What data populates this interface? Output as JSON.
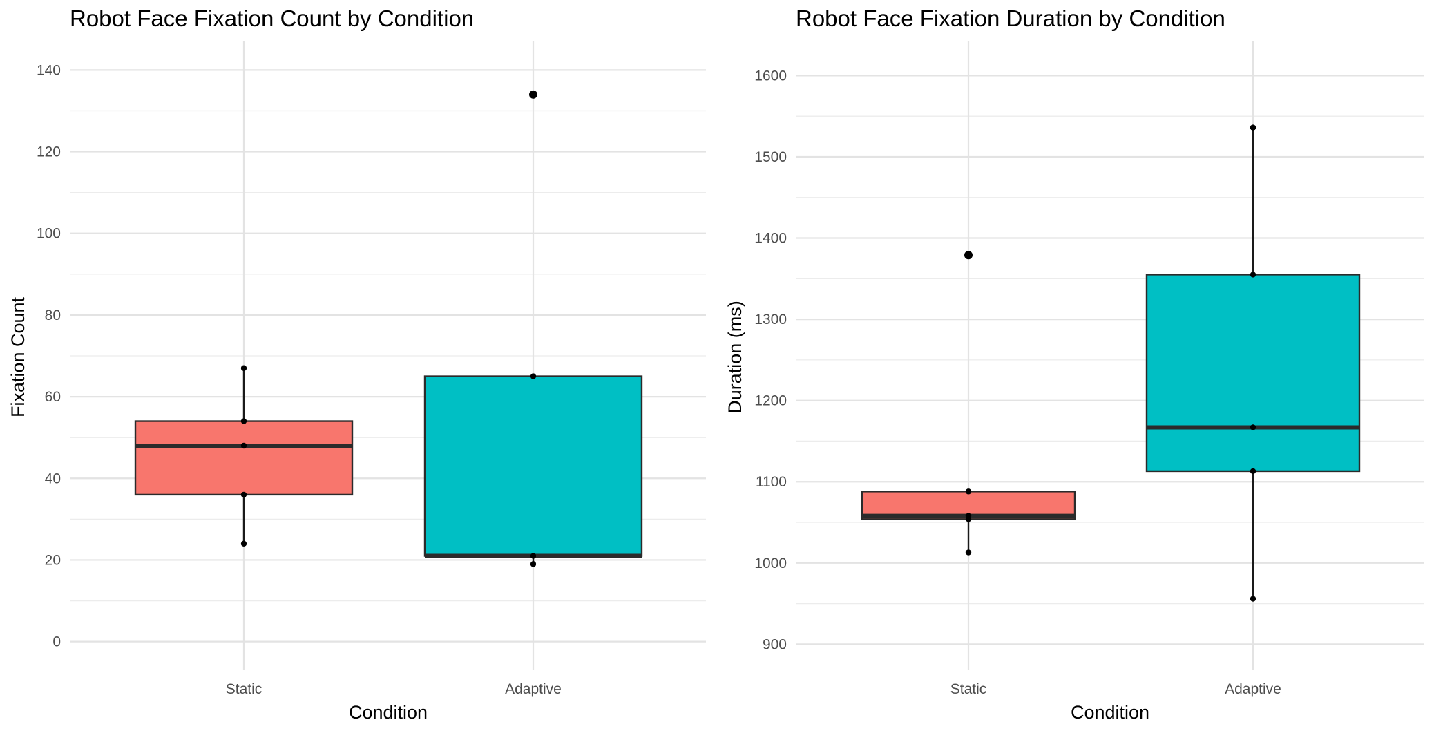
{
  "chart_data": [
    {
      "type": "box",
      "title": "Robot Face Fixation Count by Condition",
      "xlabel": "Condition",
      "ylabel": "Fixation Count",
      "categories": [
        "Static",
        "Adaptive"
      ],
      "ylim": [
        -7,
        147
      ],
      "yticks": [
        0,
        20,
        40,
        60,
        80,
        100,
        120,
        140
      ],
      "ytick_labels": [
        "0",
        "20",
        "40",
        "60",
        "80",
        "100",
        "120",
        "140"
      ],
      "grid": true,
      "legend": "none",
      "boxes": [
        {
          "category": "Static",
          "whisker_low": 24,
          "q1": 36,
          "median": 48,
          "q3": 54,
          "whisker_high": 67,
          "outliers": [],
          "points": [
            24,
            36,
            48,
            54,
            67
          ],
          "color": "#F8766D"
        },
        {
          "category": "Adaptive",
          "whisker_low": 19,
          "q1": 21,
          "median": 21,
          "q3": 65,
          "whisker_high": 65,
          "outliers": [
            134
          ],
          "points": [
            19,
            21,
            65,
            134
          ],
          "color": "#00BFC4"
        }
      ]
    },
    {
      "type": "box",
      "title": "Robot Face Fixation Duration by Condition",
      "xlabel": "Condition",
      "ylabel": "Duration (ms)",
      "categories": [
        "Static",
        "Adaptive"
      ],
      "ylim": [
        868,
        1642
      ],
      "yticks": [
        900,
        1000,
        1100,
        1200,
        1300,
        1400,
        1500,
        1600
      ],
      "ytick_labels": [
        "900",
        "1000",
        "1100",
        "1200",
        "1300",
        "1400",
        "1500",
        "1600"
      ],
      "grid": true,
      "legend": "none",
      "boxes": [
        {
          "category": "Static",
          "whisker_low": 1013,
          "q1": 1054,
          "median": 1058,
          "q3": 1088,
          "whisker_high": 1088,
          "outliers": [
            1379
          ],
          "points": [
            1013,
            1054,
            1058,
            1088,
            1379
          ],
          "color": "#F8766D"
        },
        {
          "category": "Adaptive",
          "whisker_low": 956,
          "q1": 1113,
          "median": 1167,
          "q3": 1355,
          "whisker_high": 1536,
          "outliers": [],
          "points": [
            956,
            1113,
            1167,
            1355,
            1536
          ],
          "color": "#00BFC4"
        }
      ]
    }
  ]
}
